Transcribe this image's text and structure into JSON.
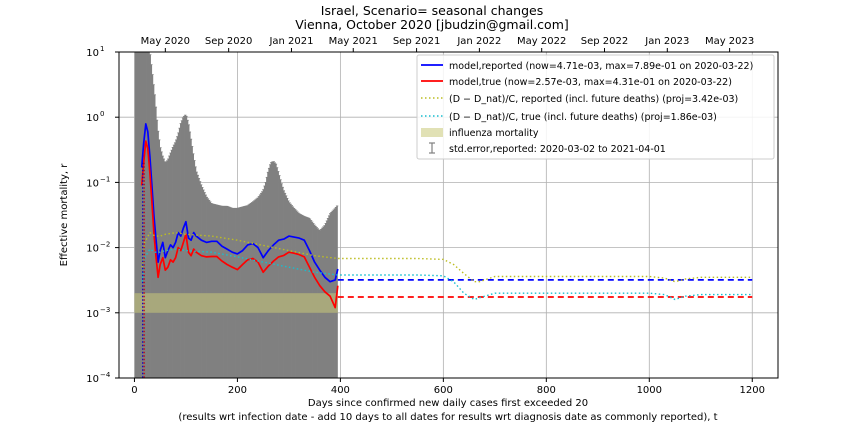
{
  "chart_data": {
    "type": "line",
    "title": "Israel, Scenario= seasonal changes",
    "subtitle": "Vienna, October 2020 [jbudzin@gmail.com]",
    "xlabel": "Days since confirmed new daily cases first exceeded 20",
    "xlabel2": "(results wrt infection date - add 10 days to all dates for results wrt diagnosis date as commonly reported), t",
    "ylabel": "Effective mortality, r",
    "xlim": [
      -30,
      1250
    ],
    "ylim": [
      0.0001,
      10
    ],
    "yscale": "log",
    "grid": true,
    "legend_position": "top-right",
    "x_ticks": [
      0,
      200,
      400,
      600,
      800,
      1000,
      1200
    ],
    "x_tick_labels": [
      "0",
      "200",
      "400",
      "600",
      "800",
      "1000",
      "1200"
    ],
    "top_axis": {
      "ticks": [
        60,
        183,
        305,
        425,
        548,
        670,
        791,
        913,
        1035,
        1156
      ],
      "labels": [
        "May 2020",
        "Sep 2020",
        "Jan 2021",
        "May 2021",
        "Sep 2021",
        "Jan 2022",
        "May 2022",
        "Sep 2022",
        "Jan 2023",
        "May 2023"
      ]
    },
    "y_ticks": [
      0.0001,
      0.001,
      0.01,
      0.1,
      1,
      10
    ],
    "y_tick_base": "10",
    "y_tick_exponents": [
      "−4",
      "−3",
      "−2",
      "−1",
      "0",
      "1"
    ],
    "colors": {
      "reported": "#0000ff",
      "true": "#ff0000",
      "proj_reported": "#bcbd22",
      "proj_true": "#17becf",
      "influenza": "#c8c878",
      "stderr": "#808080"
    },
    "series": [
      {
        "name": "model,reported (now=4.71e-03, max=7.89e-01 on 2020-03-22)",
        "style": "solid",
        "x": [
          14,
          18,
          22,
          26,
          30,
          34,
          38,
          42,
          46,
          50,
          55,
          60,
          65,
          70,
          75,
          80,
          85,
          90,
          95,
          100,
          105,
          110,
          115,
          120,
          130,
          140,
          150,
          160,
          170,
          180,
          190,
          200,
          210,
          220,
          230,
          240,
          250,
          260,
          270,
          280,
          290,
          300,
          310,
          320,
          330,
          340,
          350,
          360,
          370,
          380,
          390,
          395
        ],
        "y": [
          0.17,
          0.4,
          0.79,
          0.6,
          0.25,
          0.09,
          0.03,
          0.013,
          0.006,
          0.009,
          0.012,
          0.007,
          0.009,
          0.011,
          0.01,
          0.012,
          0.017,
          0.015,
          0.02,
          0.025,
          0.014,
          0.013,
          0.017,
          0.015,
          0.013,
          0.012,
          0.0125,
          0.0125,
          0.0105,
          0.0095,
          0.0085,
          0.008,
          0.009,
          0.011,
          0.0115,
          0.01,
          0.007,
          0.009,
          0.011,
          0.013,
          0.0135,
          0.015,
          0.0145,
          0.014,
          0.013,
          0.009,
          0.006,
          0.0045,
          0.0035,
          0.003,
          0.0032,
          0.0047
        ]
      },
      {
        "name": "model,true (now=2.57e-03, max=4.31e-01 on 2020-03-22)",
        "style": "solid",
        "x": [
          14,
          18,
          22,
          26,
          30,
          34,
          38,
          42,
          46,
          50,
          55,
          60,
          65,
          70,
          75,
          80,
          85,
          90,
          95,
          100,
          105,
          110,
          115,
          120,
          130,
          140,
          150,
          160,
          170,
          180,
          190,
          200,
          210,
          220,
          230,
          240,
          250,
          260,
          270,
          280,
          290,
          300,
          310,
          320,
          330,
          340,
          350,
          360,
          370,
          380,
          390,
          395
        ],
        "y": [
          0.09,
          0.2,
          0.43,
          0.33,
          0.14,
          0.05,
          0.016,
          0.007,
          0.0035,
          0.0055,
          0.007,
          0.0045,
          0.005,
          0.0065,
          0.006,
          0.007,
          0.01,
          0.009,
          0.012,
          0.016,
          0.0085,
          0.0075,
          0.0095,
          0.0085,
          0.0075,
          0.0072,
          0.0073,
          0.0073,
          0.0062,
          0.0055,
          0.005,
          0.0046,
          0.0055,
          0.0065,
          0.0068,
          0.006,
          0.0042,
          0.0052,
          0.0062,
          0.0072,
          0.0076,
          0.0085,
          0.0082,
          0.0078,
          0.0072,
          0.005,
          0.0035,
          0.0026,
          0.0021,
          0.0018,
          0.0012,
          0.0026
        ]
      },
      {
        "name": "model,reported (projection)",
        "style": "dashed",
        "legend": false,
        "x": [
          395,
          1200
        ],
        "y": [
          0.0032,
          0.0032
        ]
      },
      {
        "name": "model,true (projection)",
        "style": "dashed",
        "legend": false,
        "x": [
          395,
          1200
        ],
        "y": [
          0.00175,
          0.00175
        ]
      },
      {
        "name": "(D − D_nat)/C, reported (incl. future deaths) (proj=3.42e-03)",
        "style": "dotted",
        "x": [
          15,
          20,
          30,
          40,
          50,
          60,
          80,
          100,
          150,
          200,
          300,
          350,
          395,
          450,
          550,
          600,
          620,
          640,
          660,
          670,
          700,
          800,
          900,
          1000,
          1030,
          1050,
          1070,
          1100,
          1200
        ],
        "y": [
          0.005,
          0.012,
          0.017,
          0.015,
          0.015,
          0.016,
          0.017,
          0.016,
          0.015,
          0.013,
          0.009,
          0.0075,
          0.0068,
          0.0068,
          0.0068,
          0.0066,
          0.0055,
          0.004,
          0.003,
          0.003,
          0.0036,
          0.0036,
          0.0036,
          0.0036,
          0.0034,
          0.003,
          0.0033,
          0.0035,
          0.0035
        ]
      },
      {
        "name": "(D − D_nat)/C, true (incl. future deaths) (proj=1.86e-03)",
        "style": "dotted",
        "x": [
          15,
          20,
          30,
          40,
          50,
          60,
          80,
          100,
          150,
          200,
          300,
          350,
          395,
          450,
          550,
          600,
          620,
          640,
          660,
          670,
          700,
          800,
          900,
          1000,
          1030,
          1050,
          1070,
          1100,
          1200
        ],
        "y": [
          0.003,
          0.007,
          0.0095,
          0.0085,
          0.0085,
          0.009,
          0.0095,
          0.009,
          0.0085,
          0.0072,
          0.005,
          0.0042,
          0.0038,
          0.0038,
          0.0038,
          0.0037,
          0.003,
          0.002,
          0.0016,
          0.0017,
          0.002,
          0.002,
          0.002,
          0.002,
          0.0019,
          0.0016,
          0.0018,
          0.0019,
          0.0019
        ]
      }
    ],
    "influenza_band": {
      "name": "influenza mortality",
      "x": [
        0,
        395
      ],
      "y": [
        0.001,
        0.002
      ]
    },
    "stderr_band": {
      "name": "std.error,reported: 2020-03-02 to 2021-04-01",
      "x": [
        2,
        10,
        15,
        20,
        25,
        30,
        35,
        40,
        45,
        50,
        55,
        60,
        65,
        70,
        75,
        80,
        85,
        90,
        95,
        100,
        105,
        110,
        115,
        120,
        130,
        140,
        150,
        160,
        170,
        180,
        190,
        200,
        210,
        220,
        230,
        240,
        250,
        255,
        260,
        265,
        270,
        275,
        280,
        285,
        290,
        300,
        310,
        320,
        330,
        340,
        350,
        360,
        370,
        380,
        390,
        395
      ],
      "upper": [
        10,
        10,
        10,
        10,
        10,
        10,
        4.5,
        2.0,
        0.7,
        0.35,
        0.25,
        0.2,
        0.22,
        0.28,
        0.35,
        0.42,
        0.55,
        0.8,
        1.0,
        1.1,
        0.8,
        0.45,
        0.25,
        0.15,
        0.09,
        0.06,
        0.047,
        0.045,
        0.043,
        0.043,
        0.04,
        0.04,
        0.042,
        0.044,
        0.05,
        0.058,
        0.075,
        0.1,
        0.15,
        0.2,
        0.21,
        0.19,
        0.14,
        0.1,
        0.075,
        0.05,
        0.04,
        0.033,
        0.03,
        0.028,
        0.022,
        0.018,
        0.022,
        0.033,
        0.04,
        0.045
      ],
      "lower": [
        0.0001,
        0.0001,
        0.0001,
        0.0001,
        0.0001,
        0.0001,
        0.0001,
        0.0001,
        0.0001,
        0.0001,
        0.0001,
        0.0001,
        0.0001,
        0.0001,
        0.0001,
        0.0001,
        0.0001,
        0.0001,
        0.0001,
        0.0001,
        0.0001,
        0.0001,
        0.0001,
        0.0001,
        0.0001,
        0.0001,
        0.0001,
        0.0001,
        0.0001,
        0.0001,
        0.0001,
        0.0001,
        0.0001,
        0.0001,
        0.0001,
        0.0001,
        0.0001,
        0.0001,
        0.0001,
        0.0001,
        0.0001,
        0.0001,
        0.0001,
        0.0001,
        0.0001,
        0.0001,
        0.0001,
        0.0001,
        0.0001,
        0.0001,
        0.0001,
        0.0001,
        0.0001,
        0.0001,
        0.0001,
        0.0001
      ]
    },
    "start_markers": {
      "x": 16,
      "y_top": 0.2,
      "colors": [
        "blue",
        "red"
      ]
    }
  }
}
